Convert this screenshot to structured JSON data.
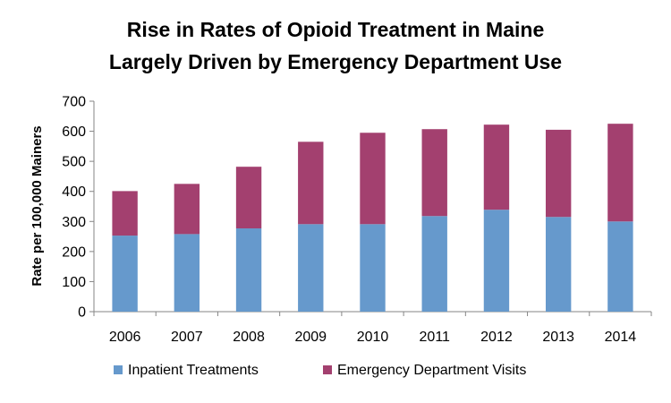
{
  "chart_data": {
    "type": "bar",
    "stacked": true,
    "title_lines": [
      "Rise in Rates of Opioid Treatment in Maine",
      "Largely Driven by Emergency Department Use"
    ],
    "xlabel": "",
    "ylabel": "Rate per 100,000 Mainers",
    "ylim": [
      0,
      700
    ],
    "yticks": [
      0,
      100,
      200,
      300,
      400,
      500,
      600,
      700
    ],
    "categories": [
      "2006",
      "2007",
      "2008",
      "2009",
      "2010",
      "2011",
      "2012",
      "2013",
      "2014"
    ],
    "series": [
      {
        "name": "Inpatient Treatments",
        "color": "#6699cc",
        "values": [
          253,
          258,
          277,
          291,
          291,
          318,
          339,
          315,
          300
        ]
      },
      {
        "name": "Emergency Department Visits",
        "color": "#a3406f",
        "values": [
          148,
          167,
          205,
          274,
          304,
          289,
          283,
          290,
          325
        ]
      }
    ],
    "grid": false,
    "legend_position": "bottom"
  }
}
